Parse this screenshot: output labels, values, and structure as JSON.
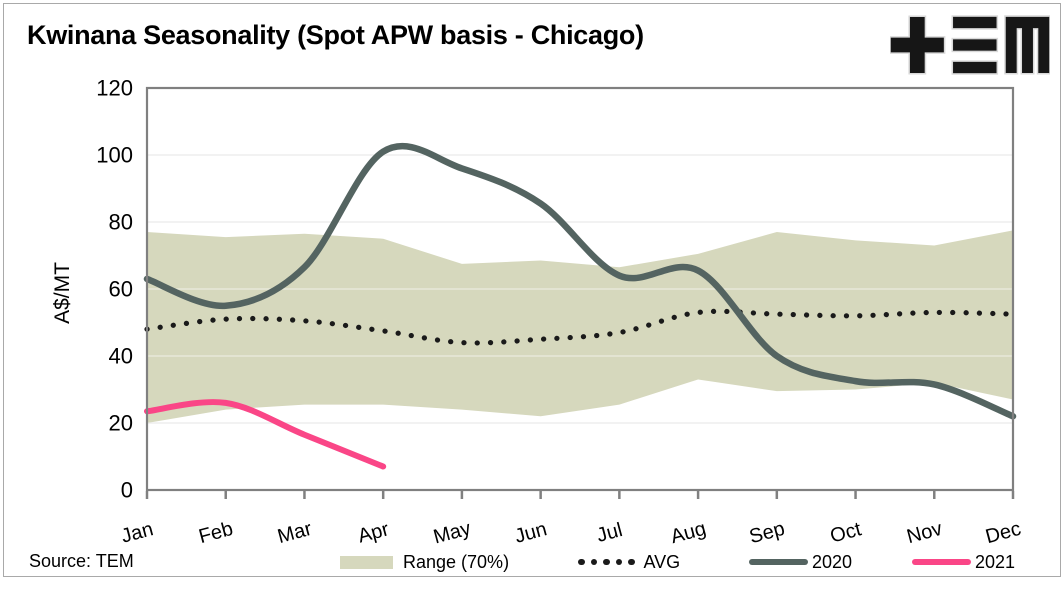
{
  "title": "Kwinana Seasonality (Spot APW basis - Chicago)",
  "source": "Source: TEM",
  "logo": {
    "alt": "TEM"
  },
  "legend": {
    "items": [
      "Range (70%)",
      "AVG",
      "2020",
      "2021"
    ]
  },
  "colors": {
    "band": "#d6d8bd",
    "avg": "#1a1a1a",
    "y2020": "#546461",
    "y2021": "#fa4687",
    "grid": "#d9d9d9",
    "axis": "#808080"
  },
  "chart_data": {
    "type": "line",
    "title": "Kwinana Seasonality (Spot APW basis - Chicago)",
    "xlabel": "",
    "ylabel": "A$/MT",
    "categories": [
      "Jan",
      "Feb",
      "Mar",
      "Apr",
      "May",
      "Jun",
      "Jul",
      "Aug",
      "Sep",
      "Oct",
      "Nov",
      "Dec"
    ],
    "ylim": [
      0,
      120
    ],
    "yticks": [
      0,
      20,
      40,
      60,
      80,
      100,
      120
    ],
    "grid": "horizontal",
    "legend_position": "bottom",
    "series": [
      {
        "name": "Range (70%)",
        "type": "band",
        "color": "#d6d8bd",
        "upper": [
          77,
          75.5,
          76.5,
          75,
          67.5,
          68.5,
          66.5,
          70.5,
          77,
          74.5,
          73,
          77.5
        ],
        "lower": [
          20,
          24,
          25.5,
          25.5,
          24,
          22,
          25.5,
          33,
          29.5,
          30,
          32,
          27
        ]
      },
      {
        "name": "AVG",
        "type": "dotted-line",
        "color": "#1a1a1a",
        "values": [
          48,
          51,
          50.5,
          47.5,
          44,
          45,
          47,
          53,
          52.5,
          52,
          53,
          52.5
        ]
      },
      {
        "name": "2020",
        "type": "line",
        "color": "#546461",
        "values": [
          63,
          55,
          66.5,
          101,
          96,
          85.5,
          64,
          65.5,
          40,
          32.5,
          31.5,
          22
        ]
      },
      {
        "name": "2021",
        "type": "line",
        "color": "#fa4687",
        "values": [
          23.5,
          26,
          16.5,
          7
        ]
      }
    ]
  }
}
